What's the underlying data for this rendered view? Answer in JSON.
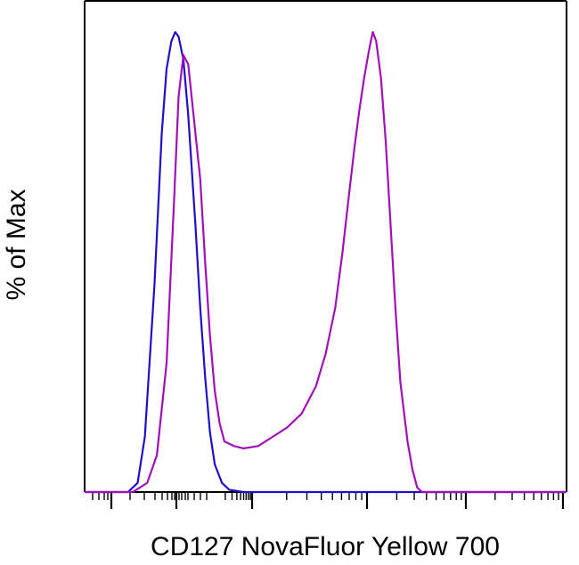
{
  "chart_data": {
    "type": "line",
    "title": "",
    "xlabel": "CD127 NovaFluor Yellow 700",
    "ylabel": "% of Max",
    "x_scale": "logicle",
    "x_tick_labels": "none",
    "y_tick_labels": "none",
    "ylim": [
      0,
      100
    ],
    "grid": false,
    "legend": "none",
    "series": [
      {
        "color": "#1f10c8",
        "points": [
          [
            0.0,
            0
          ],
          [
            0.05,
            0
          ],
          [
            0.09,
            0
          ],
          [
            0.11,
            2
          ],
          [
            0.125,
            12
          ],
          [
            0.145,
            45
          ],
          [
            0.16,
            78
          ],
          [
            0.17,
            92
          ],
          [
            0.18,
            98
          ],
          [
            0.188,
            100
          ],
          [
            0.195,
            99
          ],
          [
            0.205,
            94
          ],
          [
            0.215,
            82
          ],
          [
            0.23,
            58
          ],
          [
            0.24,
            40
          ],
          [
            0.25,
            25
          ],
          [
            0.26,
            13
          ],
          [
            0.27,
            6
          ],
          [
            0.285,
            2
          ],
          [
            0.3,
            0.5
          ],
          [
            0.33,
            0
          ],
          [
            1.0,
            0
          ]
        ]
      },
      {
        "color": "#a010b8",
        "points": [
          [
            0.0,
            0
          ],
          [
            0.05,
            0
          ],
          [
            0.1,
            0
          ],
          [
            0.13,
            2
          ],
          [
            0.15,
            8
          ],
          [
            0.17,
            28
          ],
          [
            0.185,
            62
          ],
          [
            0.195,
            86
          ],
          [
            0.205,
            95
          ],
          [
            0.215,
            93
          ],
          [
            0.225,
            83
          ],
          [
            0.24,
            68
          ],
          [
            0.25,
            50
          ],
          [
            0.26,
            34
          ],
          [
            0.27,
            22
          ],
          [
            0.28,
            15
          ],
          [
            0.29,
            11
          ],
          [
            0.31,
            10
          ],
          [
            0.33,
            9.5
          ],
          [
            0.36,
            10
          ],
          [
            0.39,
            12
          ],
          [
            0.42,
            14
          ],
          [
            0.45,
            17
          ],
          [
            0.48,
            23
          ],
          [
            0.5,
            30
          ],
          [
            0.52,
            40
          ],
          [
            0.535,
            52
          ],
          [
            0.55,
            66
          ],
          [
            0.56,
            75
          ],
          [
            0.57,
            83
          ],
          [
            0.58,
            90
          ],
          [
            0.59,
            96
          ],
          [
            0.598,
            100
          ],
          [
            0.605,
            98
          ],
          [
            0.615,
            90
          ],
          [
            0.625,
            76
          ],
          [
            0.635,
            58
          ],
          [
            0.645,
            40
          ],
          [
            0.655,
            24
          ],
          [
            0.67,
            11
          ],
          [
            0.68,
            5
          ],
          [
            0.69,
            1
          ],
          [
            0.7,
            0
          ],
          [
            0.75,
            0
          ],
          [
            1.0,
            0
          ]
        ]
      }
    ]
  }
}
